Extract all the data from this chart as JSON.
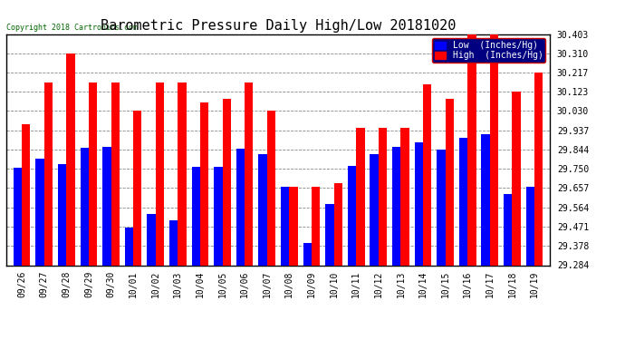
{
  "title": "Barometric Pressure Daily High/Low 20181020",
  "copyright": "Copyright 2018 Cartronics.com",
  "categories": [
    "09/26",
    "09/27",
    "09/28",
    "09/29",
    "09/30",
    "10/01",
    "10/02",
    "10/03",
    "10/04",
    "10/05",
    "10/06",
    "10/07",
    "10/08",
    "10/09",
    "10/10",
    "10/11",
    "10/12",
    "10/13",
    "10/14",
    "10/15",
    "10/16",
    "10/17",
    "10/18",
    "10/19"
  ],
  "low_values": [
    29.757,
    29.8,
    29.774,
    29.852,
    29.855,
    29.466,
    29.533,
    29.5,
    29.762,
    29.76,
    29.848,
    29.82,
    29.663,
    29.39,
    29.581,
    29.763,
    29.82,
    29.855,
    29.88,
    29.844,
    29.9,
    29.92,
    29.63,
    29.665
  ],
  "high_values": [
    29.968,
    30.17,
    30.307,
    30.17,
    30.17,
    30.033,
    30.17,
    30.17,
    30.07,
    30.09,
    30.17,
    30.033,
    29.663,
    29.663,
    29.68,
    29.95,
    29.95,
    29.95,
    30.16,
    30.09,
    30.403,
    30.403,
    30.123,
    30.217
  ],
  "ylim_min": 29.284,
  "ylim_max": 30.403,
  "yticks": [
    29.284,
    29.378,
    29.471,
    29.564,
    29.657,
    29.75,
    29.844,
    29.937,
    30.03,
    30.123,
    30.217,
    30.31,
    30.403
  ],
  "low_color": "#0000ff",
  "high_color": "#ff0000",
  "background_color": "#ffffff",
  "grid_color": "#888888",
  "bar_width": 0.38,
  "title_fontsize": 11,
  "legend_low_label": "Low  (Inches/Hg)",
  "legend_high_label": "High  (Inches/Hg)"
}
